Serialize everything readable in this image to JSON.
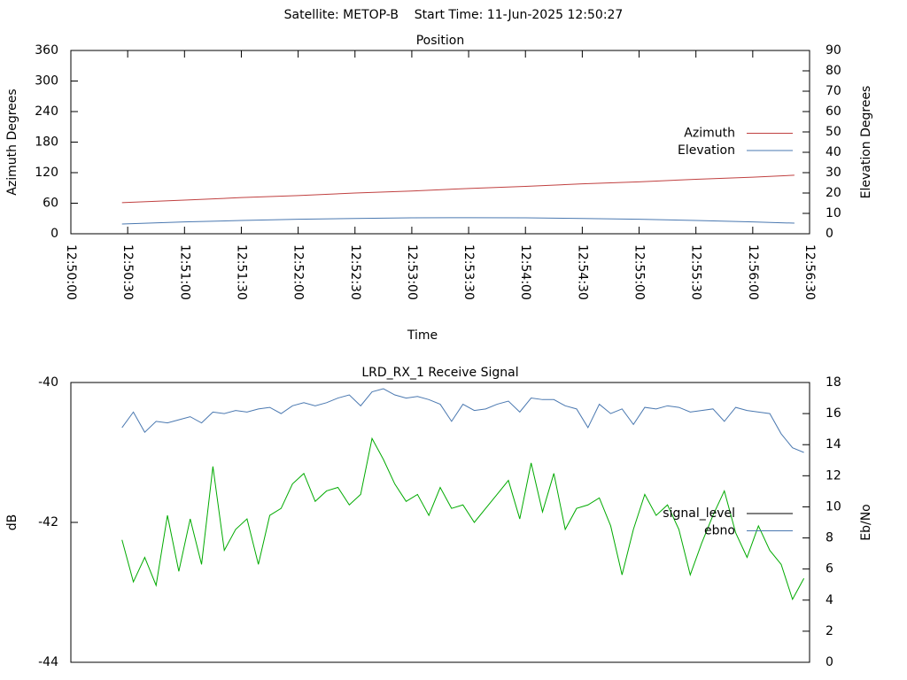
{
  "title": "Satellite: METOP-B    Start Time: 11-Jun-2025 12:50:27",
  "chart_data": [
    {
      "type": "line",
      "title": "Position",
      "xlabel": "Time",
      "ylabel": "Azimuth Degrees",
      "y2label": "Elevation Degrees",
      "x": [
        "12:50:27",
        "12:51:00",
        "12:51:30",
        "12:52:00",
        "12:52:30",
        "12:53:00",
        "12:53:30",
        "12:54:00",
        "12:54:30",
        "12:55:00",
        "12:55:30",
        "12:56:00",
        "12:56:22"
      ],
      "series": [
        {
          "name": "Azimuth",
          "color": "#c04040",
          "axis": "y",
          "values": [
            61,
            66,
            71,
            75,
            80,
            84,
            89,
            93,
            98,
            102,
            107,
            111,
            115
          ]
        },
        {
          "name": "Elevation",
          "color": "#4a78b0",
          "axis": "y2",
          "values": [
            4.8,
            5.8,
            6.5,
            7.1,
            7.5,
            7.8,
            7.9,
            7.8,
            7.5,
            7.1,
            6.5,
            5.8,
            5.2
          ]
        }
      ],
      "xlim": [
        "12:50:00",
        "12:56:30"
      ],
      "xticks": [
        "12:50:00",
        "12:50:30",
        "12:51:00",
        "12:51:30",
        "12:52:00",
        "12:52:30",
        "12:53:00",
        "12:53:30",
        "12:54:00",
        "12:54:30",
        "12:55:00",
        "12:55:30",
        "12:56:00",
        "12:56:30"
      ],
      "ylim": [
        0,
        360
      ],
      "yticks": [
        0,
        60,
        120,
        180,
        240,
        300,
        360
      ],
      "y2lim": [
        0,
        90
      ],
      "y2ticks": [
        0,
        10,
        20,
        30,
        40,
        50,
        60,
        70,
        80,
        90
      ],
      "legend": "center right",
      "grid": false
    },
    {
      "type": "line",
      "title": "LRD_RX_1 Receive Signal",
      "ylabel": "dB",
      "y2label": "Eb/No",
      "x": [
        "12:50:27",
        "12:50:33",
        "12:50:39",
        "12:50:45",
        "12:50:51",
        "12:50:57",
        "12:51:03",
        "12:51:09",
        "12:51:15",
        "12:51:21",
        "12:51:27",
        "12:51:33",
        "12:51:39",
        "12:51:45",
        "12:51:51",
        "12:51:57",
        "12:52:03",
        "12:52:09",
        "12:52:15",
        "12:52:21",
        "12:52:27",
        "12:52:33",
        "12:52:39",
        "12:52:45",
        "12:52:51",
        "12:52:57",
        "12:53:03",
        "12:53:09",
        "12:53:15",
        "12:53:21",
        "12:53:27",
        "12:53:33",
        "12:53:39",
        "12:53:45",
        "12:53:51",
        "12:53:57",
        "12:54:03",
        "12:54:09",
        "12:54:15",
        "12:54:21",
        "12:54:27",
        "12:54:33",
        "12:54:39",
        "12:54:45",
        "12:54:51",
        "12:54:57",
        "12:55:03",
        "12:55:09",
        "12:55:15",
        "12:55:21",
        "12:55:27",
        "12:55:33",
        "12:55:39",
        "12:55:45",
        "12:55:51",
        "12:55:57",
        "12:56:03",
        "12:56:09",
        "12:56:15",
        "12:56:21",
        "12:56:27"
      ],
      "series": [
        {
          "name": "signal_level",
          "color": "#00aa00",
          "legend_color": "#000000",
          "axis": "y",
          "values": [
            -42.25,
            -42.85,
            -42.5,
            -42.9,
            -41.9,
            -42.7,
            -41.95,
            -42.6,
            -41.2,
            -42.4,
            -42.1,
            -41.95,
            -42.6,
            -41.9,
            -41.8,
            -41.45,
            -41.3,
            -41.7,
            -41.55,
            -41.5,
            -41.75,
            -41.6,
            -40.8,
            -41.1,
            -41.45,
            -41.7,
            -41.6,
            -41.9,
            -41.5,
            -41.8,
            -41.75,
            -42.0,
            -41.8,
            -41.6,
            -41.4,
            -41.95,
            -41.15,
            -41.85,
            -41.3,
            -42.1,
            -41.8,
            -41.75,
            -41.65,
            -42.05,
            -42.75,
            -42.1,
            -41.6,
            -41.9,
            -41.75,
            -42.1,
            -42.75,
            -42.3,
            -41.9,
            -41.55,
            -42.15,
            -42.5,
            -42.05,
            -42.4,
            -42.6,
            -43.1,
            -42.8
          ]
        },
        {
          "name": "ebno",
          "color": "#4a78b0",
          "axis": "y2",
          "values": [
            15.1,
            16.1,
            14.8,
            15.5,
            15.4,
            15.6,
            15.8,
            15.4,
            16.1,
            16.0,
            16.2,
            16.1,
            16.3,
            16.4,
            16.0,
            16.5,
            16.7,
            16.5,
            16.7,
            17.0,
            17.2,
            16.5,
            17.4,
            17.6,
            17.2,
            17.0,
            17.1,
            16.9,
            16.6,
            15.5,
            16.6,
            16.2,
            16.3,
            16.6,
            16.8,
            16.1,
            17.0,
            16.9,
            16.9,
            16.5,
            16.3,
            15.1,
            16.6,
            16.0,
            16.3,
            15.3,
            16.4,
            16.3,
            16.5,
            16.4,
            16.1,
            16.2,
            16.3,
            15.5,
            16.4,
            16.2,
            16.1,
            16.0,
            14.7,
            13.8,
            13.5
          ]
        }
      ],
      "xlim": [
        "12:50:00",
        "12:56:30"
      ],
      "ylim": [
        -44,
        -40
      ],
      "yticks": [
        -44,
        -42,
        -40
      ],
      "y2lim": [
        0,
        18
      ],
      "y2ticks": [
        0,
        2,
        4,
        6,
        8,
        10,
        12,
        14,
        16,
        18
      ],
      "legend": "center right",
      "grid": false
    }
  ]
}
